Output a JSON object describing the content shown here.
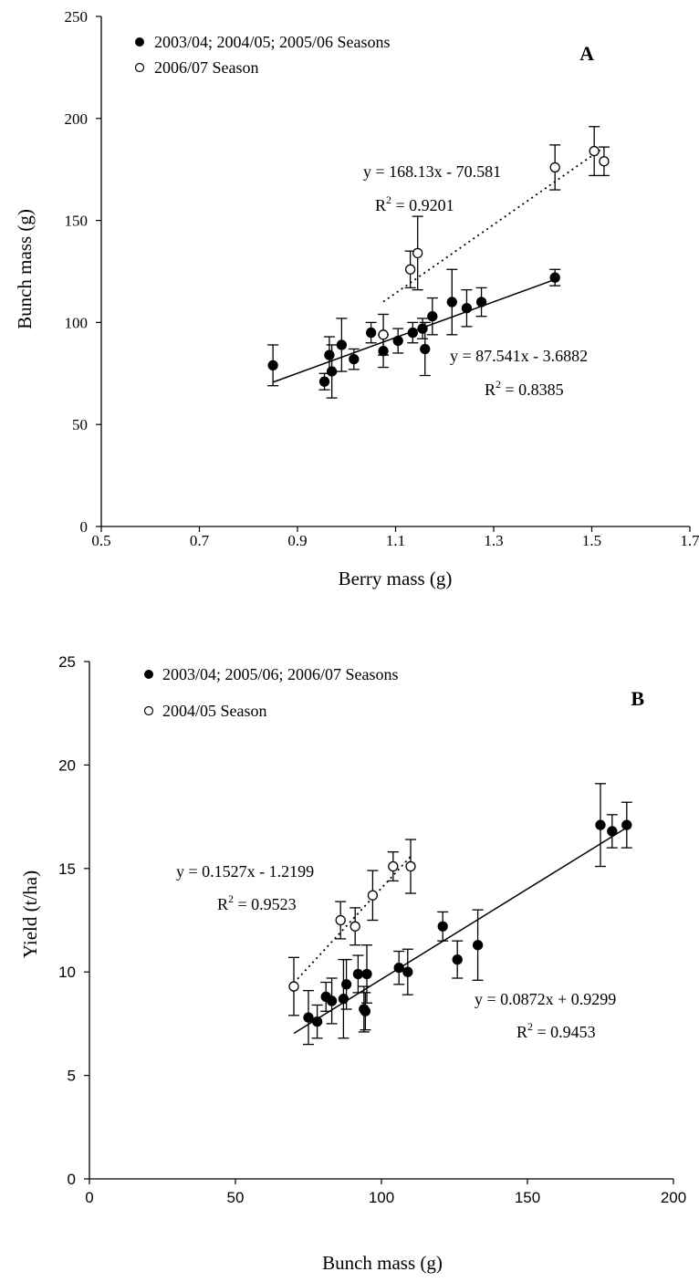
{
  "chart_data": [
    {
      "panel_label": "A",
      "type": "scatter",
      "xlabel": "Berry mass (g)",
      "ylabel": "Bunch mass (g)",
      "xlim": [
        0.5,
        1.7
      ],
      "ylim": [
        0,
        250
      ],
      "x_ticks": [
        "0.5",
        "0.7",
        "0.9",
        "1.1",
        "1.3",
        "1.5",
        "1.7"
      ],
      "y_ticks": [
        "0",
        "50",
        "100",
        "150",
        "200",
        "250"
      ],
      "grid": false,
      "legend_position": "top-left",
      "series": [
        {
          "name": "2003/04; 2004/05; 2005/06 Seasons",
          "marker": "filled-circle",
          "color": "#000000",
          "points": [
            {
              "x": 0.85,
              "y": 79,
              "err": 10
            },
            {
              "x": 0.955,
              "y": 71,
              "err": 4
            },
            {
              "x": 0.965,
              "y": 84,
              "err": 9
            },
            {
              "x": 0.97,
              "y": 76,
              "err": 13
            },
            {
              "x": 0.99,
              "y": 89,
              "err": 13
            },
            {
              "x": 1.015,
              "y": 82,
              "err": 5
            },
            {
              "x": 1.05,
              "y": 95,
              "err": 5
            },
            {
              "x": 1.075,
              "y": 86,
              "err": 8
            },
            {
              "x": 1.105,
              "y": 91,
              "err": 6
            },
            {
              "x": 1.135,
              "y": 95,
              "err": 5
            },
            {
              "x": 1.155,
              "y": 97,
              "err": 5
            },
            {
              "x": 1.16,
              "y": 87,
              "err": 13
            },
            {
              "x": 1.175,
              "y": 103,
              "err": 9
            },
            {
              "x": 1.215,
              "y": 110,
              "err": 16
            },
            {
              "x": 1.245,
              "y": 107,
              "err": 9
            },
            {
              "x": 1.275,
              "y": 110,
              "err": 7
            },
            {
              "x": 1.425,
              "y": 122,
              "err": 4
            }
          ],
          "fit": {
            "slope": 87.541,
            "intercept": -3.6882,
            "x_range": [
              0.85,
              1.425
            ],
            "style": "solid"
          },
          "equation": "y = 87.541x - 3.6882",
          "r2_value": "0.8385"
        },
        {
          "name": "2006/07 Season",
          "marker": "open-circle",
          "color": "#000000",
          "points": [
            {
              "x": 1.075,
              "y": 94,
              "err": 10
            },
            {
              "x": 1.13,
              "y": 126,
              "err": 9
            },
            {
              "x": 1.145,
              "y": 134,
              "err": 18
            },
            {
              "x": 1.425,
              "y": 176,
              "err": 11
            },
            {
              "x": 1.505,
              "y": 184,
              "err": 12
            },
            {
              "x": 1.525,
              "y": 179,
              "err": 7
            }
          ],
          "fit": {
            "slope": 168.13,
            "intercept": -70.581,
            "x_range": [
              1.075,
              1.525
            ],
            "style": "dotted"
          },
          "equation": "y = 168.13x - 70.581",
          "r2_value": "0.9201"
        }
      ]
    },
    {
      "panel_label": "B",
      "type": "scatter",
      "xlabel": "Bunch mass (g)",
      "ylabel": "Yield (t/ha)",
      "xlim": [
        0,
        200
      ],
      "ylim": [
        0,
        25
      ],
      "x_ticks": [
        "0",
        "50",
        "100",
        "150",
        "200"
      ],
      "y_ticks": [
        "0",
        "5",
        "10",
        "15",
        "20",
        "25"
      ],
      "grid": false,
      "legend_position": "top-left",
      "series": [
        {
          "name": "2003/04; 2005/06; 2006/07 Seasons",
          "marker": "filled-circle",
          "color": "#000000",
          "points": [
            {
              "x": 75,
              "y": 7.8,
              "err": 1.3
            },
            {
              "x": 78,
              "y": 7.6,
              "err": 0.8
            },
            {
              "x": 81,
              "y": 8.8,
              "err": 0.7
            },
            {
              "x": 83,
              "y": 8.6,
              "err": 1.1
            },
            {
              "x": 87,
              "y": 8.7,
              "err": 1.9
            },
            {
              "x": 88,
              "y": 9.4,
              "err": 1.2
            },
            {
              "x": 92,
              "y": 9.9,
              "err": 0.9
            },
            {
              "x": 94,
              "y": 8.2,
              "err": 1.1
            },
            {
              "x": 94.5,
              "y": 8.1,
              "err": 0.9
            },
            {
              "x": 95,
              "y": 9.9,
              "err": 1.4
            },
            {
              "x": 106,
              "y": 10.2,
              "err": 0.8
            },
            {
              "x": 109,
              "y": 10.0,
              "err": 1.1
            },
            {
              "x": 121,
              "y": 12.2,
              "err": 0.7
            },
            {
              "x": 126,
              "y": 10.6,
              "err": 0.9
            },
            {
              "x": 133,
              "y": 11.3,
              "err": 1.7
            },
            {
              "x": 175,
              "y": 17.1,
              "err": 2.0
            },
            {
              "x": 179,
              "y": 16.8,
              "err": 0.8
            },
            {
              "x": 184,
              "y": 17.1,
              "err": 1.1
            }
          ],
          "fit": {
            "slope": 0.0872,
            "intercept": 0.9299,
            "x_range": [
              70,
              184
            ],
            "style": "solid"
          },
          "equation": "y = 0.0872x + 0.9299",
          "r2_value": "0.9453"
        },
        {
          "name": "2004/05 Season",
          "marker": "open-circle",
          "color": "#000000",
          "points": [
            {
              "x": 70,
              "y": 9.3,
              "err": 1.4
            },
            {
              "x": 86,
              "y": 12.5,
              "err": 0.9
            },
            {
              "x": 91,
              "y": 12.2,
              "err": 0.9
            },
            {
              "x": 97,
              "y": 13.7,
              "err": 1.2
            },
            {
              "x": 104,
              "y": 15.1,
              "err": 0.7
            },
            {
              "x": 110,
              "y": 15.1,
              "err": 1.3
            }
          ],
          "fit": {
            "slope": 0.1527,
            "intercept": -1.2199,
            "x_range": [
              70,
              110
            ],
            "style": "dotted"
          },
          "equation": "y = 0.1527x - 1.2199",
          "r2_value": "0.9523"
        }
      ]
    }
  ]
}
